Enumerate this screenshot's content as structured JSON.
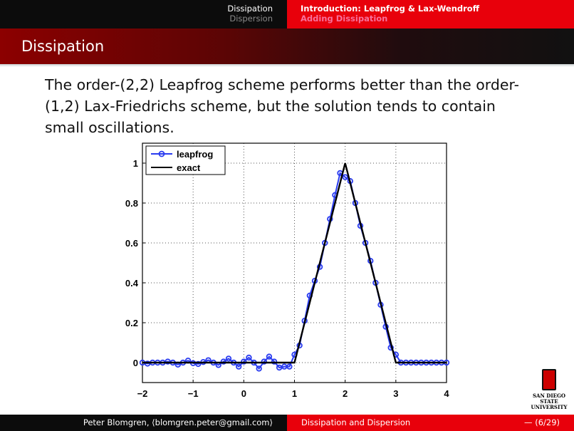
{
  "header": {
    "sections_left": [
      {
        "label": "Dissipation",
        "active": true
      },
      {
        "label": "Dispersion",
        "active": false
      }
    ],
    "subsections_right": [
      {
        "label": "Introduction: Leapfrog & Lax-Wendroff",
        "active": true
      },
      {
        "label": "Adding Dissipation",
        "active": false
      }
    ]
  },
  "slide": {
    "title": "Dissipation",
    "body": "The order-(2,2) Leapfrog scheme performs better than the order-(1,2) Lax-Friedrichs scheme, but the solution tends to contain small oscillations."
  },
  "chart_data": {
    "type": "line",
    "xlim": [
      -2,
      4
    ],
    "ylim": [
      -0.1,
      1.1
    ],
    "xticks": [
      -2,
      -1,
      0,
      1,
      2,
      3,
      4
    ],
    "xtick_labels": [
      "−2",
      "−1",
      "0",
      "1",
      "2",
      "3",
      "4"
    ],
    "yticks": [
      0,
      0.2,
      0.4,
      0.6,
      0.8,
      1
    ],
    "ytick_labels": [
      "0",
      "0.2",
      "0.4",
      "0.6",
      "0.8",
      "1"
    ],
    "grid": true,
    "legend_position": "top-left",
    "series": [
      {
        "name": "leapfrog",
        "color": "#2a3cf0",
        "marker": "circle",
        "x": [
          -2,
          -1.9,
          -1.8,
          -1.7,
          -1.6,
          -1.5,
          -1.4,
          -1.3,
          -1.2,
          -1.1,
          -1.0,
          -0.9,
          -0.8,
          -0.7,
          -0.6,
          -0.5,
          -0.4,
          -0.3,
          -0.2,
          -0.1,
          0,
          0.1,
          0.2,
          0.3,
          0.4,
          0.5,
          0.6,
          0.7,
          0.8,
          0.9,
          1.0,
          1.1,
          1.2,
          1.3,
          1.4,
          1.5,
          1.6,
          1.7,
          1.8,
          1.9,
          2.0,
          2.1,
          2.2,
          2.3,
          2.4,
          2.5,
          2.6,
          2.7,
          2.8,
          2.9,
          3.0,
          3.1,
          3.2,
          3.3,
          3.4,
          3.5,
          3.6,
          3.7,
          3.8,
          3.9,
          4.0
        ],
        "y": [
          0,
          -0.005,
          0,
          0,
          0,
          0.005,
          0,
          -0.01,
          0,
          0.01,
          -0.003,
          -0.007,
          0.003,
          0.012,
          0,
          -0.012,
          0.005,
          0.02,
          0,
          -0.02,
          0.005,
          0.025,
          0,
          -0.03,
          0.005,
          0.03,
          0.005,
          -0.025,
          -0.02,
          -0.02,
          0.04,
          0.086,
          0.21,
          0.336,
          0.41,
          0.48,
          0.6,
          0.72,
          0.84,
          0.95,
          0.93,
          0.91,
          0.8,
          0.686,
          0.6,
          0.51,
          0.4,
          0.29,
          0.18,
          0.075,
          0.04,
          0,
          0,
          0,
          0,
          0,
          0,
          0,
          0,
          0,
          0
        ]
      },
      {
        "name": "exact",
        "color": "#000000",
        "marker": "none",
        "x": [
          -2,
          1,
          2,
          3,
          4
        ],
        "y": [
          0,
          0,
          1,
          0,
          0
        ]
      }
    ]
  },
  "footer": {
    "author": "Peter Blomgren, ⟨blomgren.peter@gmail.com⟩",
    "title": "Dissipation and Dispersion",
    "page": "— (6/29)"
  },
  "logo": {
    "line1": "SAN DIEGO STATE",
    "line2": "UNIVERSITY"
  },
  "colors": {
    "accent_red": "#e8000b",
    "header_black": "#0c0c0c"
  }
}
